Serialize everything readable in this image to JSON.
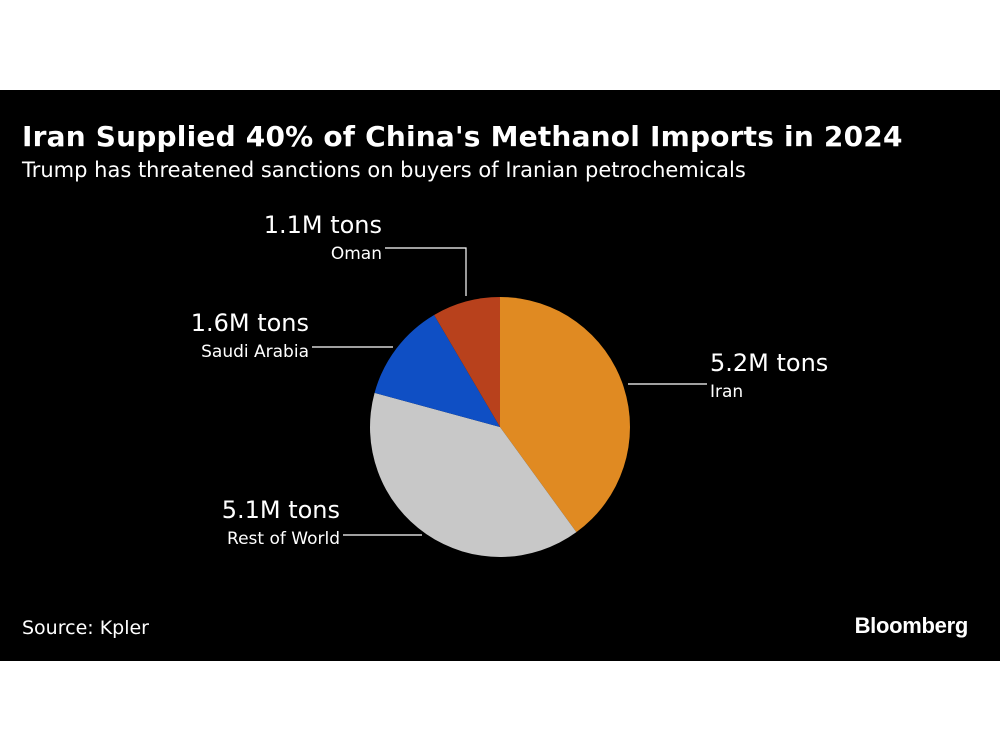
{
  "header": {
    "title": "Iran Supplied 40% of China's Methanol Imports in 2024",
    "subtitle": "Trump has threatened sanctions on buyers of Iranian petrochemicals"
  },
  "footer": {
    "source": "Source: Kpler",
    "brand": "Bloomberg"
  },
  "colors": {
    "background": "#000000",
    "text": "#ffffff",
    "leader_line": "#ffffff"
  },
  "chart_data": {
    "type": "pie",
    "title": "Iran Supplied 40% of China's Methanol Imports in 2024",
    "subtitle": "Trump has threatened sanctions on buyers of Iranian petrochemicals",
    "unit": "M tons",
    "slices": [
      {
        "name": "Iran",
        "value": 5.2,
        "value_label": "5.2M tons",
        "color": "#e08a22"
      },
      {
        "name": "Rest of World",
        "value": 5.1,
        "value_label": "5.1M tons",
        "color": "#c8c8c8"
      },
      {
        "name": "Saudi Arabia",
        "value": 1.6,
        "value_label": "1.6M tons",
        "color": "#0f4fc4"
      },
      {
        "name": "Oman",
        "value": 1.1,
        "value_label": "1.1M tons",
        "color": "#b8411c"
      }
    ],
    "legend": "none"
  }
}
